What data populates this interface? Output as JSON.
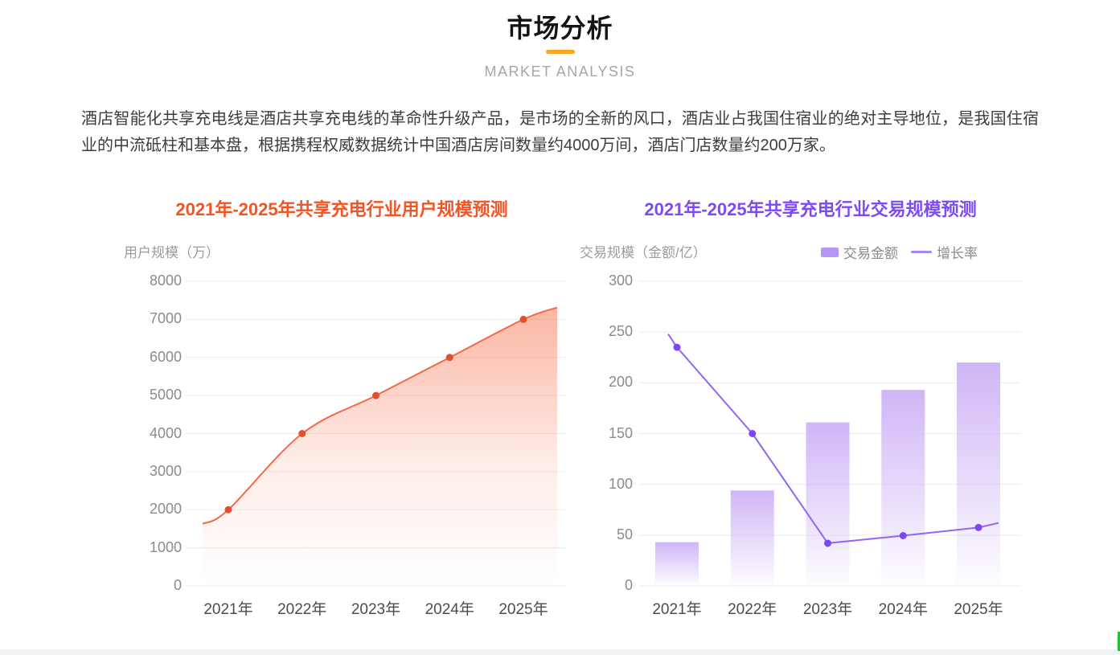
{
  "header": {
    "title": "市场分析",
    "subtitle": "MARKET ANALYSIS",
    "accent_color": "#f9a71c"
  },
  "intro": "酒店智能化共享充电线是酒店共享充电线的革命性升级产品，是市场的全新的风口，酒店业占我国住宿业的绝对主导地位，是我国住宿业的中流砥柱和基本盘，根据携程权威数据统计中国酒店房间数量约4000万间，酒店门店数量约200万家。",
  "chart_data": [
    {
      "type": "area",
      "title": "2021年-2025年共享充电行业用户规模预测",
      "title_color": "#f15525",
      "ylabel": "用户规模（万）",
      "categories": [
        "2021年",
        "2022年",
        "2023年",
        "2024年",
        "2025年"
      ],
      "values": [
        2000,
        4000,
        5000,
        6000,
        7000
      ],
      "edge_values": {
        "left": 1630,
        "right": 7310
      },
      "yticks": [
        0,
        1000,
        2000,
        3000,
        4000,
        5000,
        6000,
        7000,
        8000
      ],
      "ylim": [
        0,
        8000
      ],
      "grid": true,
      "legend_position": "none",
      "line_color": "#f4694a",
      "point_color": "#e0502a",
      "area_fill_color": "#f66c48"
    },
    {
      "type": "bar+line",
      "title": "2021年-2025年共享充电行业交易规模预测",
      "title_color": "#7d4af5",
      "ylabel": "交易规模（金额/亿）",
      "categories": [
        "2021年",
        "2022年",
        "2023年",
        "2024年",
        "2025年"
      ],
      "series": [
        {
          "name": "交易金额",
          "type": "bar",
          "values": [
            43,
            94,
            161,
            193,
            220
          ],
          "color": "#cdb2f6"
        },
        {
          "name": "增长率",
          "type": "line",
          "values": [
            235,
            150,
            42,
            49.5,
            57.5
          ],
          "edge_values": {
            "left": 248,
            "right": 62
          },
          "color": "#9266f2",
          "point_color": "#7a48ee"
        }
      ],
      "legend": [
        "交易金额",
        "增长率"
      ],
      "legend_position": "top-right",
      "yticks": [
        0,
        50,
        100,
        150,
        200,
        250,
        300
      ],
      "ylim": [
        0,
        300
      ],
      "grid": true
    }
  ],
  "scrollbar_color": "#1ec42f",
  "footer_strip_color": "#f1f2f4"
}
